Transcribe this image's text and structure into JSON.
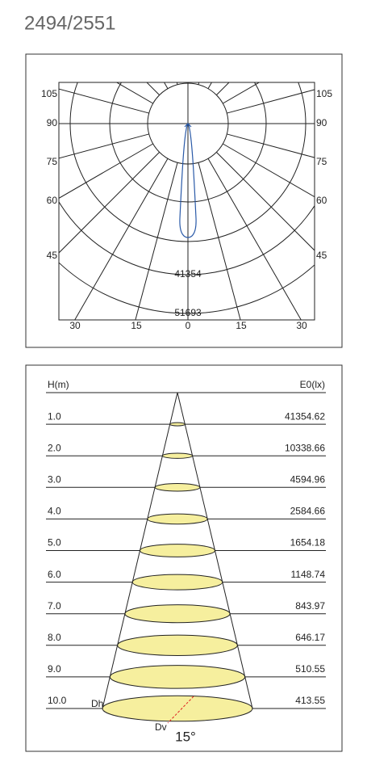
{
  "title": "2494/2551",
  "polar": {
    "angle_labels_left": [
      "105",
      "90",
      "75",
      "60",
      "45"
    ],
    "angle_labels_right": [
      "105",
      "90",
      "75",
      "60",
      "45"
    ],
    "bottom_labels": [
      "30",
      "15",
      "0",
      "15",
      "30"
    ],
    "ring_labels": [
      "41354",
      "51693"
    ]
  },
  "cone": {
    "header_h": "H(m)",
    "header_e": "E0(lx)",
    "rows": [
      {
        "h": "1.0",
        "e": "41354.62"
      },
      {
        "h": "2.0",
        "e": "10338.66"
      },
      {
        "h": "3.0",
        "e": "4594.96"
      },
      {
        "h": "4.0",
        "e": "2584.66"
      },
      {
        "h": "5.0",
        "e": "1654.18"
      },
      {
        "h": "6.0",
        "e": "1148.74"
      },
      {
        "h": "7.0",
        "e": "843.97"
      },
      {
        "h": "8.0",
        "e": "646.17"
      },
      {
        "h": "9.0",
        "e": "510.55"
      },
      {
        "h": "10.0",
        "e": "413.55"
      }
    ],
    "dh": "Dh",
    "dv": "Dv",
    "beam_angle": "15°"
  }
}
